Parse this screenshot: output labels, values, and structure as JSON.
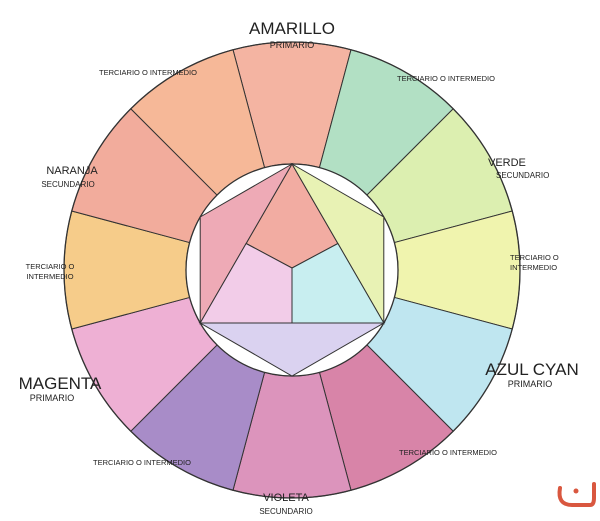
{
  "labels": {
    "yellow": {
      "name": "AMARILLO",
      "type": "PRIMARIO"
    },
    "green": {
      "name": "VERDE",
      "type": "SECUNDARIO"
    },
    "cyan": {
      "name": "AZUL CYAN",
      "type": "PRIMARIO"
    },
    "violet": {
      "name": "VIOLETA",
      "type": "SECUNDARIO"
    },
    "magenta": {
      "name": "MAGENTA",
      "type": "PRIMARIO"
    },
    "orange": {
      "name": "NARANJA",
      "type": "SECUNDARIO"
    },
    "tertiary": {
      "upper_right": "TERCIARIO O INTERMEDIO",
      "right_line1": "TERCIARIO O",
      "right_line2": "INTERMEDIO",
      "lower_right": "TERCIARIO O INTERMEDIO",
      "lower_left": "TERCIARIO O INTERMEDIO",
      "left_line1": "TERCIARIO O",
      "left_line2": "INTERMEDIO",
      "upper_left": "TERCIARIO O INTERMEDIO"
    }
  },
  "segment_colors": [
    "#f4b4a2",
    "#b2e0c4",
    "#dcefb0",
    "#f0f4ae",
    "#bfe6f0",
    "#d884a8",
    "#dc94bc",
    "#a88cc8",
    "#eeb0d4",
    "#f6cc8a",
    "#f2ac9c",
    "#f6b898"
  ],
  "inner_colors": {
    "top": "#f2aca2",
    "upper_left": "#eeaab6",
    "upper_right": "#e8f2b4",
    "lower_left": "#f2cce8",
    "lower_right": "#c8eef0",
    "bottom": "#dad2f0"
  },
  "logo_color": "#d9573f"
}
